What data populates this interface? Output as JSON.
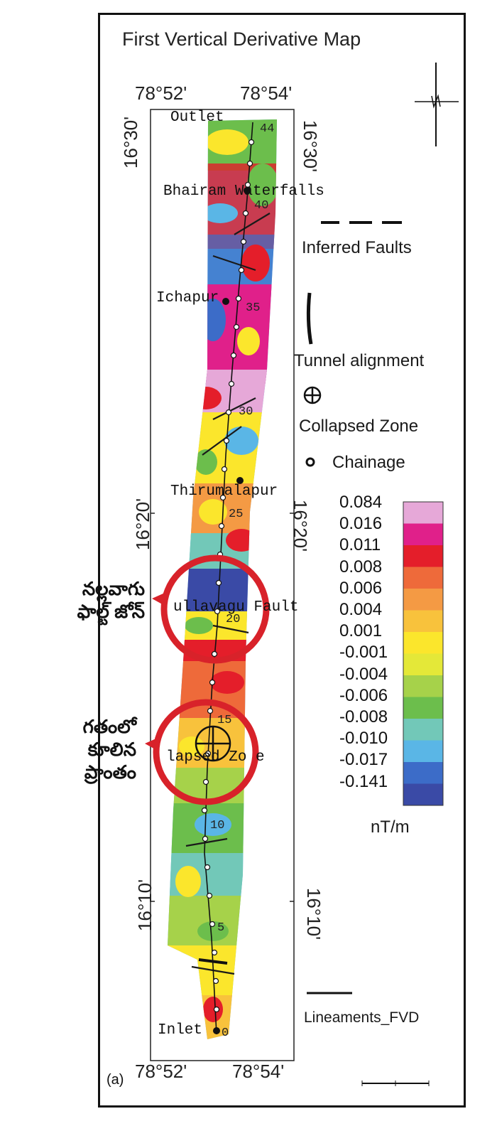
{
  "title": "First Vertical Derivative Map",
  "panel_label": "(a)",
  "coords": {
    "lon_left_top": "78°52'",
    "lon_right_top": "78°54'",
    "lon_left_bottom": "78°52'",
    "lon_right_bottom": "78°54'",
    "lat_top_left": "16°30'",
    "lat_top_right": "16°30'",
    "lat_mid_left": "16°20'",
    "lat_mid_right": "16°20'",
    "lat_bot_left": "16°10'",
    "lat_bot_right": "16°10'"
  },
  "places": {
    "outlet": "Outlet",
    "bhairam": "Bhairam Waterfalls",
    "ichapur": "Ichapur",
    "thirumalapur": "Thirumalapur",
    "nallavagu": "ullavagu Fault",
    "collapsed": "lapsed Zo  e",
    "inlet": "Inlet"
  },
  "chainages": {
    "c44": "44",
    "c40": "40",
    "c35": "35",
    "c30": "30",
    "c25": "25",
    "c20": "20",
    "c15": "15",
    "c10": "10",
    "c5": "5",
    "c0": "0"
  },
  "legend": {
    "inferred_faults": "Inferred Faults",
    "tunnel_alignment": "Tunnel alignment",
    "collapsed_zone": "Collapsed Zone",
    "chainage": "Chainage",
    "unit": "nT/m",
    "lineaments": "Lineaments_FVD"
  },
  "colorbar": {
    "labels": [
      "0.084",
      "0.016",
      "0.011",
      "0.008",
      "0.006",
      "0.004",
      "0.001",
      "-0.001",
      "-0.004",
      "-0.006",
      "-0.008",
      "-0.010",
      "-0.017",
      "-0.141"
    ],
    "colors": [
      "#e6a8d8",
      "#e0208a",
      "#e41e2a",
      "#ee6a3a",
      "#f49a44",
      "#f8c23c",
      "#fbe62c",
      "#e4e838",
      "#a6d24a",
      "#6cbe4c",
      "#72c8b8",
      "#5ab6e6",
      "#3c6cc8",
      "#3a4aa6"
    ]
  },
  "annotations": {
    "nallavagu_te": [
      "నల్లవాగు",
      "ఫాల్ట్ జోన్"
    ],
    "collapsed_te": [
      "గతంలో",
      "కూలిన",
      "ప్రాంతం"
    ],
    "highlight_color": "#d8222a"
  }
}
